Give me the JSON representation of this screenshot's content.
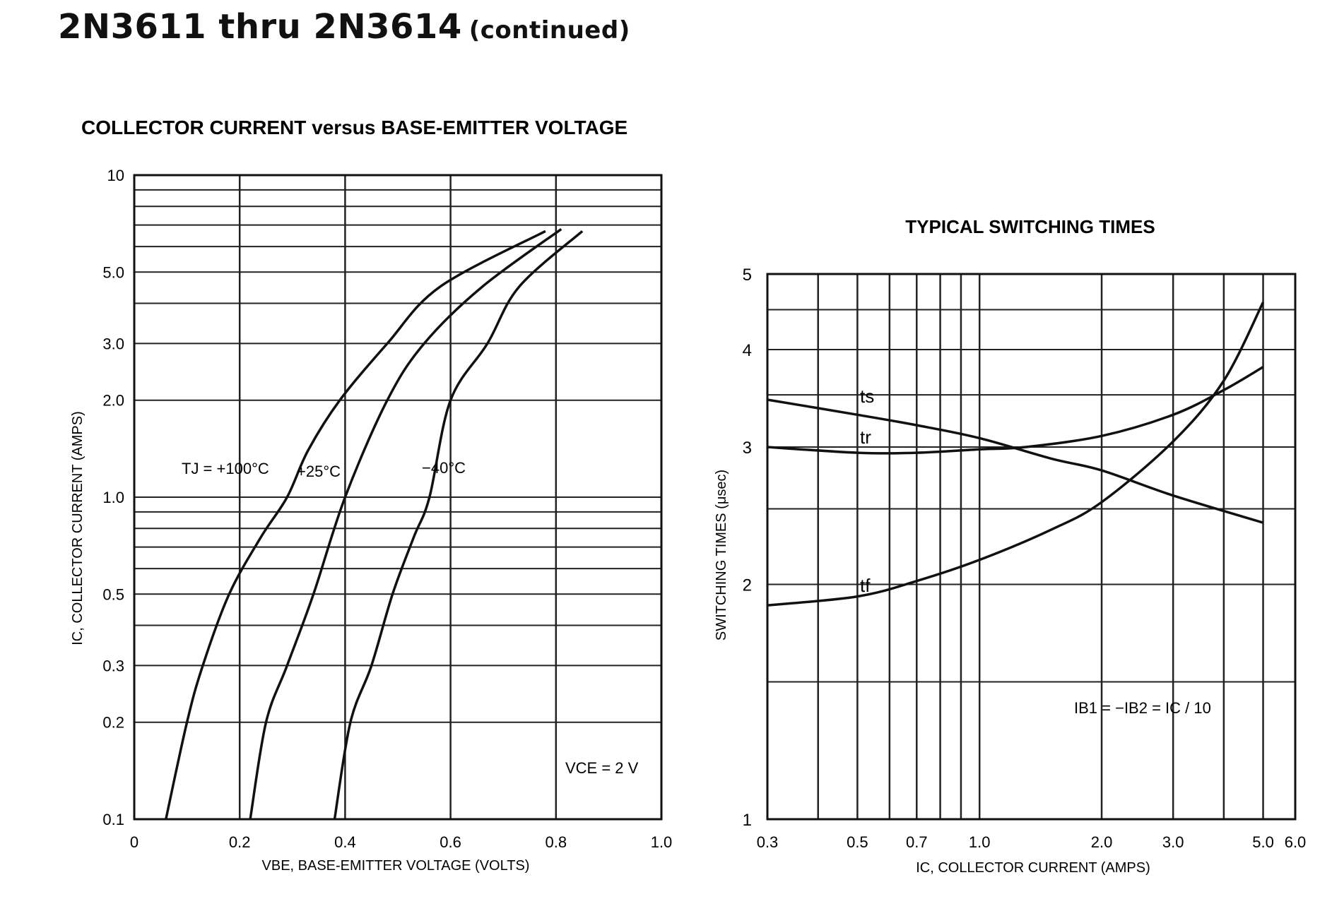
{
  "page": {
    "title": "2N3611 thru 2N3614",
    "title_suffix": "(continued)"
  },
  "chart_data": [
    {
      "type": "line",
      "title": "COLLECTOR CURRENT versus BASE-EMITTER VOLTAGE",
      "xlabel": "VBE, BASE-EMITTER VOLTAGE (VOLTS)",
      "ylabel": "IC, COLLECTOR CURRENT (AMPS)",
      "x_scale": "linear",
      "y_scale": "log",
      "xlim": [
        0,
        1.0
      ],
      "ylim": [
        0.1,
        10
      ],
      "x_ticks": [
        0,
        0.2,
        0.4,
        0.6,
        0.8,
        1.0
      ],
      "x_tick_labels": [
        "0",
        "0.2",
        "0.4",
        "0.6",
        "0.8",
        "1.0"
      ],
      "y_ticks": [
        0.1,
        0.2,
        0.3,
        0.5,
        1.0,
        2.0,
        3.0,
        5.0,
        10
      ],
      "y_tick_labels": [
        "0.1",
        "0.2",
        "0.3",
        "0.5",
        "1.0",
        "2.0",
        "3.0",
        "5.0",
        "10"
      ],
      "grid": true,
      "annotations": {
        "condition": "VCE = 2 V"
      },
      "series": [
        {
          "name": "TJ = +100°C",
          "points": [
            [
              0.06,
              0.1
            ],
            [
              0.1,
              0.2
            ],
            [
              0.13,
              0.3
            ],
            [
              0.18,
              0.5
            ],
            [
              0.24,
              0.75
            ],
            [
              0.29,
              1.0
            ],
            [
              0.33,
              1.4
            ],
            [
              0.39,
              2.0
            ],
            [
              0.48,
              3.0
            ],
            [
              0.58,
              4.5
            ],
            [
              0.78,
              6.7
            ]
          ]
        },
        {
          "name": "+25°C",
          "points": [
            [
              0.22,
              0.1
            ],
            [
              0.25,
              0.2
            ],
            [
              0.29,
              0.3
            ],
            [
              0.34,
              0.5
            ],
            [
              0.4,
              1.0
            ],
            [
              0.48,
              2.0
            ],
            [
              0.55,
              3.0
            ],
            [
              0.66,
              4.5
            ],
            [
              0.81,
              6.8
            ]
          ]
        },
        {
          "name": "-40°C",
          "points": [
            [
              0.38,
              0.1
            ],
            [
              0.41,
              0.2
            ],
            [
              0.45,
              0.3
            ],
            [
              0.49,
              0.5
            ],
            [
              0.53,
              0.75
            ],
            [
              0.56,
              1.0
            ],
            [
              0.6,
              2.0
            ],
            [
              0.67,
              3.0
            ],
            [
              0.73,
              4.5
            ],
            [
              0.85,
              6.7
            ]
          ]
        }
      ],
      "labels": {
        "t100": "TJ = +100°C",
        "t25": "+25°C",
        "tm40": "−40°C"
      }
    },
    {
      "type": "line",
      "title": "TYPICAL SWITCHING TIMES",
      "xlabel": "IC, COLLECTOR CURRENT (AMPS)",
      "ylabel": "SWITCHING TIMES (μsec)",
      "x_scale": "log",
      "y_scale": "log",
      "xlim": [
        0.3,
        6.0
      ],
      "ylim": [
        1,
        5
      ],
      "x_ticks": [
        0.3,
        0.5,
        0.7,
        1.0,
        2.0,
        3.0,
        5.0,
        6.0
      ],
      "x_tick_labels": [
        "0.3",
        "0.5",
        "0.7",
        "1.0",
        "2.0",
        "3.0",
        "5.0",
        "6.0"
      ],
      "y_ticks": [
        1,
        2,
        3,
        4,
        5
      ],
      "y_tick_labels": [
        "1",
        "2",
        "3",
        "4",
        "5"
      ],
      "grid": true,
      "annotations": {
        "condition": "IB1 = −IB2 = IC / 10"
      },
      "series": [
        {
          "name": "ts",
          "points": [
            [
              0.3,
              3.45
            ],
            [
              0.5,
              3.3
            ],
            [
              0.7,
              3.2
            ],
            [
              1.0,
              3.08
            ],
            [
              1.5,
              2.9
            ],
            [
              2.0,
              2.8
            ],
            [
              3.0,
              2.6
            ],
            [
              5.0,
              2.4
            ]
          ]
        },
        {
          "name": "tr",
          "points": [
            [
              0.3,
              3.0
            ],
            [
              0.5,
              2.95
            ],
            [
              0.7,
              2.95
            ],
            [
              1.0,
              2.98
            ],
            [
              1.3,
              3.0
            ],
            [
              2.0,
              3.1
            ],
            [
              3.0,
              3.3
            ],
            [
              4.0,
              3.55
            ],
            [
              5.0,
              3.8
            ]
          ]
        },
        {
          "name": "tf",
          "points": [
            [
              0.3,
              1.88
            ],
            [
              0.5,
              1.93
            ],
            [
              0.7,
              2.02
            ],
            [
              1.0,
              2.15
            ],
            [
              1.5,
              2.35
            ],
            [
              2.0,
              2.55
            ],
            [
              3.0,
              3.05
            ],
            [
              4.0,
              3.65
            ],
            [
              5.0,
              4.6
            ]
          ]
        }
      ],
      "labels": {
        "ts": "ts",
        "tr": "tr",
        "tf": "tf"
      }
    }
  ]
}
